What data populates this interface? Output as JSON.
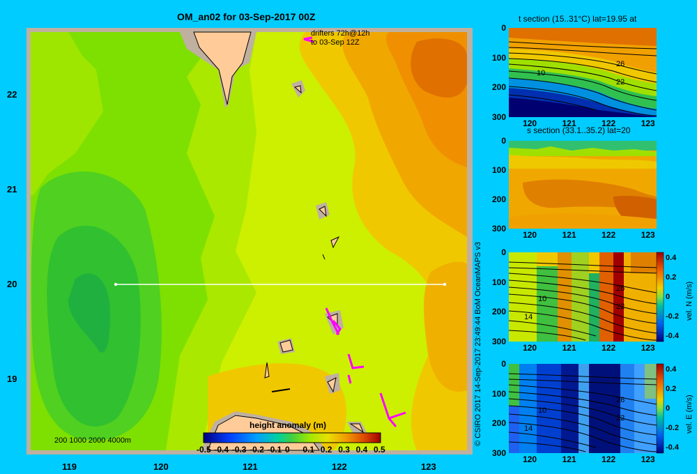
{
  "main_title": "OM_an02 for 03-Sep-2017 00Z",
  "drifters_line1": "drifters 72h@12h",
  "drifters_line2": "to 03-Sep 12Z",
  "depth_legend": "200  1000  2000  4000m",
  "credit": "© CSIRO 2017   14-Sep-2017 23:49:44 BoM OceanMAPS v3",
  "colorbar": {
    "label": "height anomaly  (m)",
    "ticks": [
      "-0.5",
      "-0.4",
      "-0.3",
      "-0.2",
      "-0.1",
      "0",
      "0.1",
      "0.2",
      "0.3",
      "0.4",
      "0.5"
    ]
  },
  "section_titles": {
    "t": "t section (15..31°C) lat=19.95 at",
    "s": "s section (33.1..35.2) lat=20"
  },
  "contour_labels": {
    "t": [
      "10",
      "26",
      "22"
    ],
    "n": [
      "10",
      "14",
      "26",
      "22"
    ],
    "e": [
      "10",
      "14",
      "26",
      "22"
    ]
  },
  "vel_n_label": "vel. N  (m/s)",
  "vel_e_label": "vel. E  (m/s)",
  "colors": {
    "background": "#00ccff",
    "land": "#ffcc99",
    "shelf": "#bfb0a0",
    "drifter": "#ff00ff",
    "section_line": "#ffffff"
  },
  "chart_data": [
    {
      "type": "heatmap",
      "title": "OM_an02 for 03-Sep-2017 00Z",
      "variable": "height anomaly (m)",
      "xlim": [
        118.5,
        123.5
      ],
      "ylim": [
        18.3,
        22.7
      ],
      "xticks": [
        119,
        120,
        121,
        122,
        123
      ],
      "yticks": [
        19,
        20,
        21,
        22
      ],
      "colorbar_range": [
        -0.5,
        0.5
      ],
      "section_line": {
        "x": [
          119.5,
          123.2
        ],
        "y": [
          20,
          20
        ]
      },
      "features": [
        "low height anomaly (~0) west near 119.3E 19.9N",
        "high height anomaly (~0.3-0.4) north-east near 122.8E 22.3N"
      ]
    },
    {
      "type": "heatmap",
      "title": "t section (15..31°C) lat=19.95 at",
      "xticks": [
        120,
        121,
        122,
        123
      ],
      "yticks": [
        0,
        100,
        200,
        300
      ],
      "ylim": [
        300,
        0
      ],
      "value_range": [
        15,
        31
      ],
      "contour_labels": [
        10,
        26,
        22
      ]
    },
    {
      "type": "heatmap",
      "title": "s section (33.1..35.2) lat=20",
      "xticks": [
        120,
        121,
        122,
        123
      ],
      "yticks": [
        0,
        100,
        200,
        300
      ],
      "ylim": [
        300,
        0
      ],
      "value_range": [
        33.1,
        35.2
      ]
    },
    {
      "type": "heatmap",
      "variable": "vel. N (m/s)",
      "xticks": [
        120,
        121,
        122,
        123
      ],
      "yticks": [
        0,
        100,
        200,
        300
      ],
      "ylim": [
        300,
        0
      ],
      "colorbar_ticks": [
        0.4,
        0.2,
        0,
        -0.2,
        -0.4
      ],
      "contour_labels": [
        10,
        14,
        26,
        22
      ]
    },
    {
      "type": "heatmap",
      "variable": "vel. E (m/s)",
      "xticks": [
        120,
        121,
        122,
        123
      ],
      "yticks": [
        0,
        100,
        200,
        300
      ],
      "ylim": [
        300,
        0
      ],
      "colorbar_ticks": [
        0.4,
        0.2,
        0,
        -0.2,
        -0.4
      ],
      "contour_labels": [
        10,
        14,
        26,
        22
      ]
    }
  ]
}
